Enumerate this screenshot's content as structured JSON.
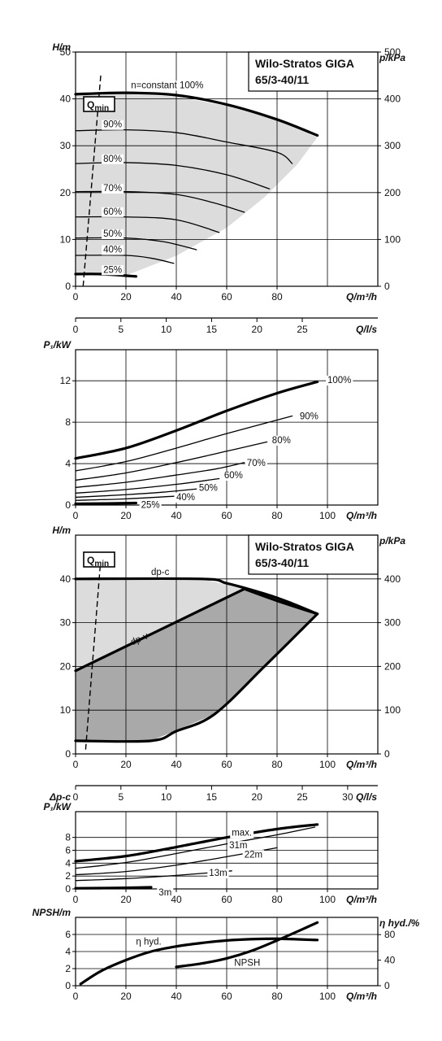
{
  "chart_data": [
    {
      "type": "line",
      "title": "Wilo-Stratos GIGA",
      "subtitle": "65/3-40/11",
      "ylabel": "H/m",
      "y2label": "p/kPa",
      "xlabel": "Q/m³/h",
      "x2label": "Q/l/s",
      "xlim": [
        0,
        120
      ],
      "ylim": [
        0,
        50
      ],
      "y2lim": [
        0,
        500
      ],
      "x2lim": [
        0,
        33.33
      ],
      "xticks": [
        "0",
        "20",
        "40",
        "60",
        "80"
      ],
      "yticks": [
        "0",
        "10",
        "20",
        "30",
        "40",
        "50"
      ],
      "y2ticks": [
        "0",
        "100",
        "200",
        "300",
        "400",
        "500"
      ],
      "x2ticks": [
        "0",
        "5",
        "10",
        "15",
        "20",
        "25"
      ],
      "qmin_label": "Q",
      "qmin_sub": "min",
      "qmin_line": [
        [
          3,
          0
        ],
        [
          10,
          45
        ]
      ],
      "envelope": [
        [
          0,
          41
        ],
        [
          20,
          41
        ],
        [
          40,
          40.5
        ],
        [
          60,
          38.5
        ],
        [
          80,
          35.5
        ],
        [
          96,
          31.8
        ],
        [
          88,
          26
        ],
        [
          75,
          19
        ],
        [
          60,
          12.5
        ],
        [
          40,
          6.5
        ],
        [
          20,
          2.3
        ],
        [
          0,
          2.3
        ]
      ],
      "series": [
        {
          "name": "n=constant 100%",
          "label_at": [
            22,
            43
          ],
          "width": 3.2,
          "values": [
            [
              0,
              41
            ],
            [
              20,
              41.3
            ],
            [
              40,
              40.8
            ],
            [
              60,
              38.8
            ],
            [
              80,
              35.6
            ],
            [
              96,
              32.2
            ]
          ]
        },
        {
          "name": "90%",
          "label_at": [
            11,
            34.6
          ],
          "width": 1.3,
          "values": [
            [
              0,
              33.2
            ],
            [
              20,
              33.4
            ],
            [
              40,
              32.8
            ],
            [
              60,
              30.8
            ],
            [
              80,
              28.6
            ],
            [
              86,
              26.2
            ]
          ]
        },
        {
          "name": "80%",
          "label_at": [
            11,
            27.3
          ],
          "width": 1.3,
          "values": [
            [
              0,
              26.2
            ],
            [
              20,
              26.4
            ],
            [
              40,
              25.8
            ],
            [
              60,
              23.8
            ],
            [
              77,
              20.8
            ]
          ]
        },
        {
          "name": "70%",
          "label_at": [
            11,
            21
          ],
          "width": 1.3,
          "values": [
            [
              0,
              20.2
            ],
            [
              20,
              20.2
            ],
            [
              40,
              19.6
            ],
            [
              55,
              17.8
            ],
            [
              67,
              15.8
            ]
          ]
        },
        {
          "name": "60%",
          "label_at": [
            11,
            16
          ],
          "width": 1.3,
          "values": [
            [
              0,
              14.8
            ],
            [
              20,
              14.8
            ],
            [
              40,
              14.2
            ],
            [
              57,
              11.5
            ]
          ]
        },
        {
          "name": "50%",
          "label_at": [
            11,
            11.3
          ],
          "width": 1.3,
          "values": [
            [
              0,
              10.3
            ],
            [
              20,
              10.3
            ],
            [
              35,
              9.5
            ],
            [
              48,
              7.8
            ]
          ]
        },
        {
          "name": "40%",
          "label_at": [
            11,
            7.9
          ],
          "width": 1.3,
          "values": [
            [
              0,
              6.6
            ],
            [
              20,
              6.6
            ],
            [
              30,
              6
            ],
            [
              39,
              4.9
            ]
          ]
        },
        {
          "name": "25%",
          "label_at": [
            11,
            3.6
          ],
          "width": 3.2,
          "values": [
            [
              0,
              2.6
            ],
            [
              10,
              2.6
            ],
            [
              24,
              2.1
            ]
          ]
        }
      ]
    },
    {
      "type": "line",
      "ylabel": "P₁/kW",
      "xlabel": "Q/m³/h",
      "xlim": [
        0,
        120
      ],
      "ylim": [
        0,
        15
      ],
      "xticks": [
        "0",
        "20",
        "40",
        "60",
        "80",
        "100"
      ],
      "yticks": [
        "0",
        "4",
        "8",
        "12"
      ],
      "series": [
        {
          "name": "100%",
          "label_at": [
            100,
            12.1
          ],
          "width": 3.2,
          "values": [
            [
              0,
              4.5
            ],
            [
              20,
              5.5
            ],
            [
              40,
              7.2
            ],
            [
              60,
              9.1
            ],
            [
              80,
              10.8
            ],
            [
              96,
              11.9
            ]
          ]
        },
        {
          "name": "90%",
          "label_at": [
            89,
            8.6
          ],
          "width": 1.3,
          "values": [
            [
              0,
              3.3
            ],
            [
              20,
              4.2
            ],
            [
              40,
              5.5
            ],
            [
              60,
              6.9
            ],
            [
              86,
              8.6
            ]
          ]
        },
        {
          "name": "80%",
          "label_at": [
            78,
            6.3
          ],
          "width": 1.3,
          "values": [
            [
              0,
              2.4
            ],
            [
              20,
              3.1
            ],
            [
              40,
              4.1
            ],
            [
              60,
              5.2
            ],
            [
              76,
              6.1
            ]
          ]
        },
        {
          "name": "70%",
          "label_at": [
            68,
            4.1
          ],
          "width": 1.3,
          "values": [
            [
              0,
              1.7
            ],
            [
              20,
              2.2
            ],
            [
              40,
              2.9
            ],
            [
              56,
              3.5
            ],
            [
              67,
              4.1
            ]
          ]
        },
        {
          "name": "60%",
          "label_at": [
            59,
            2.9
          ],
          "width": 1.3,
          "values": [
            [
              0,
              1.15
            ],
            [
              20,
              1.5
            ],
            [
              40,
              2.0
            ],
            [
              57,
              2.55
            ]
          ]
        },
        {
          "name": "50%",
          "label_at": [
            49,
            1.7
          ],
          "width": 1.3,
          "values": [
            [
              0,
              0.75
            ],
            [
              20,
              1.0
            ],
            [
              35,
              1.25
            ],
            [
              48,
              1.55
            ]
          ]
        },
        {
          "name": "40%",
          "label_at": [
            40,
            0.8
          ],
          "width": 1.3,
          "values": [
            [
              0,
              0.45
            ],
            [
              20,
              0.6
            ],
            [
              39,
              0.85
            ]
          ]
        },
        {
          "name": "25%",
          "label_at": [
            26,
            0.05
          ],
          "width": 3.2,
          "values": [
            [
              0,
              0.12
            ],
            [
              12,
              0.15
            ],
            [
              24,
              0.2
            ]
          ]
        }
      ]
    },
    {
      "type": "area",
      "title": "Wilo-Stratos GIGA",
      "subtitle": "65/3-40/11",
      "ylabel": "H/m",
      "y2label": "p/kPa",
      "xlabel": "Q/m³/h",
      "x2label": "Q/l/s",
      "xlim": [
        0,
        120
      ],
      "ylim": [
        0,
        50
      ],
      "y2lim": [
        0,
        500
      ],
      "x2lim": [
        0,
        33.33
      ],
      "xticks": [
        "0",
        "20",
        "40",
        "60",
        "80",
        "100"
      ],
      "yticks": [
        "0",
        "10",
        "20",
        "30",
        "40"
      ],
      "y2ticks": [
        "0",
        "100",
        "200",
        "300",
        "400"
      ],
      "x2ticks": [
        "0",
        "5",
        "10",
        "15",
        "20",
        "25",
        "30"
      ],
      "qmin_label": "Q",
      "qmin_sub": "min",
      "qmin_line": [
        [
          4,
          1
        ],
        [
          10,
          44.5
        ]
      ],
      "light_region": [
        [
          0,
          40
        ],
        [
          50,
          40
        ],
        [
          67,
          37.7
        ],
        [
          85,
          35
        ],
        [
          96,
          32
        ],
        [
          90,
          28
        ],
        [
          0,
          19
        ]
      ],
      "dark_region": [
        [
          0,
          19
        ],
        [
          67,
          37.7
        ],
        [
          80,
          35
        ],
        [
          96,
          32
        ],
        [
          75,
          20
        ],
        [
          55,
          9
        ],
        [
          30,
          3
        ],
        [
          0,
          3
        ]
      ],
      "series": [
        {
          "name": "dp-c",
          "label_at": [
            30,
            41.6
          ],
          "width": 3.2,
          "values": [
            [
              0,
              40
            ],
            [
              50,
              40
            ],
            [
              60,
              39
            ],
            [
              75,
              36.6
            ],
            [
              85,
              34.6
            ],
            [
              96,
              32
            ]
          ]
        },
        {
          "name": "dp-v",
          "label_at": [
            22,
            25.5
          ],
          "width": 3.2,
          "values": [
            [
              0,
              19
            ],
            [
              67,
              37.7
            ]
          ]
        },
        {
          "name": "",
          "width": 3.2,
          "values": [
            [
              67,
              37.7
            ],
            [
              80,
              35
            ],
            [
              96,
              32
            ]
          ]
        },
        {
          "name": "",
          "width": 3.2,
          "values": [
            [
              96,
              32
            ],
            [
              75,
              20
            ],
            [
              55,
              9
            ],
            [
              40,
              5.2
            ],
            [
              30,
              3
            ],
            [
              0,
              3
            ]
          ]
        }
      ]
    },
    {
      "type": "line",
      "ylabel_top": "Δp-c",
      "ylabel": "P₁/kW",
      "xlabel": "Q/m³/h",
      "xlim": [
        0,
        120
      ],
      "ylim": [
        0,
        12
      ],
      "xticks": [
        "0",
        "20",
        "40",
        "60",
        "80",
        "100"
      ],
      "yticks": [
        "0",
        "2",
        "4",
        "6",
        "8"
      ],
      "series": [
        {
          "name": "max.",
          "label_at": [
            62,
            8.8
          ],
          "width": 3.2,
          "values": [
            [
              0,
              4.3
            ],
            [
              20,
              5.1
            ],
            [
              40,
              6.5
            ],
            [
              60,
              8.0
            ],
            [
              80,
              9.3
            ],
            [
              96,
              10
            ]
          ]
        },
        {
          "name": "31m",
          "label_at": [
            61,
            6.8
          ],
          "width": 1.3,
          "values": [
            [
              0,
              3.2
            ],
            [
              20,
              4.1
            ],
            [
              40,
              5.5
            ],
            [
              60,
              7.0
            ],
            [
              80,
              8.4
            ],
            [
              95,
              9.6
            ]
          ]
        },
        {
          "name": "22m",
          "label_at": [
            67,
            5.4
          ],
          "width": 1.3,
          "values": [
            [
              0,
              2.2
            ],
            [
              20,
              2.7
            ],
            [
              40,
              3.7
            ],
            [
              60,
              5.0
            ],
            [
              80,
              6.4
            ]
          ]
        },
        {
          "name": "13m",
          "label_at": [
            53,
            2.5
          ],
          "width": 1.3,
          "values": [
            [
              0,
              1.3
            ],
            [
              20,
              1.6
            ],
            [
              40,
              2.1
            ],
            [
              62,
              2.8
            ]
          ]
        },
        {
          "name": "3m",
          "label_at": [
            33,
            -0.5
          ],
          "width": 3.2,
          "values": [
            [
              0,
              0.1
            ],
            [
              15,
              0.15
            ],
            [
              30,
              0.25
            ]
          ]
        }
      ]
    },
    {
      "type": "line",
      "ylabel": "NPSH/m",
      "y2label": "η hyd./%",
      "xlabel": "Q/m³/h",
      "xlim": [
        0,
        120
      ],
      "ylim": [
        0,
        8
      ],
      "y2lim": [
        0,
        107
      ],
      "xticks": [
        "0",
        "20",
        "40",
        "60",
        "80",
        "100"
      ],
      "yticks": [
        "0",
        "2",
        "4",
        "6"
      ],
      "y2ticks": [
        "0",
        "40",
        "80"
      ],
      "series": [
        {
          "name": "η hyd.",
          "label_at": [
            24,
            5.2
          ],
          "width": 3.2,
          "values": [
            [
              2,
              0.2
            ],
            [
              10,
              1.7
            ],
            [
              20,
              3.0
            ],
            [
              30,
              4.0
            ],
            [
              40,
              4.6
            ],
            [
              50,
              5.0
            ],
            [
              60,
              5.3
            ],
            [
              70,
              5.45
            ],
            [
              80,
              5.5
            ],
            [
              96,
              5.35
            ]
          ]
        },
        {
          "name": "NPSH",
          "label_at": [
            63,
            2.7
          ],
          "width": 3.2,
          "values": [
            [
              40,
              2.2
            ],
            [
              50,
              2.6
            ],
            [
              60,
              3.2
            ],
            [
              70,
              4.1
            ],
            [
              80,
              5.3
            ],
            [
              90,
              6.6
            ],
            [
              96,
              7.4
            ]
          ]
        }
      ]
    }
  ]
}
